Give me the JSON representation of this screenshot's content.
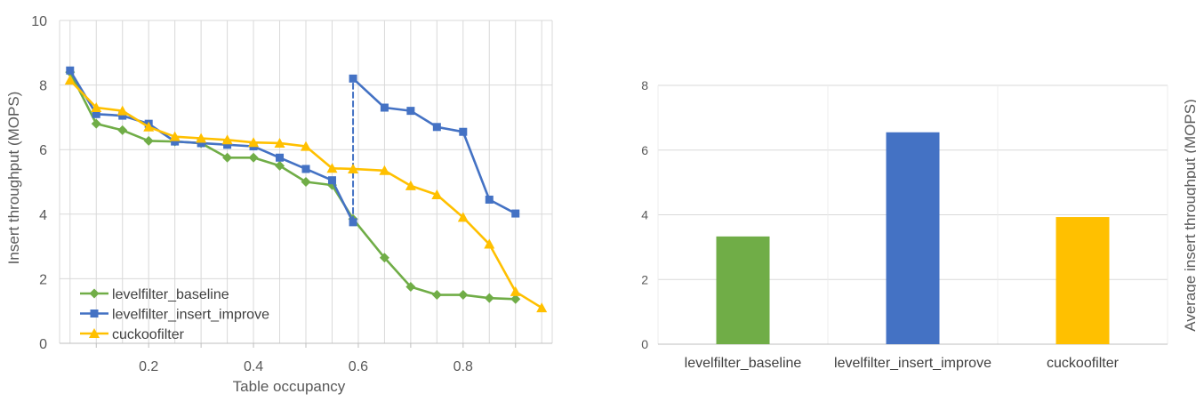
{
  "chart_data": [
    {
      "type": "line",
      "xlabel": "Table occupancy",
      "ylabel": "Insert throughput (MOPS)",
      "xlim": [
        0.03,
        0.97
      ],
      "ylim": [
        0,
        10
      ],
      "x_ticks": [
        "0.2",
        "0.4",
        "0.6",
        "0.8"
      ],
      "y_ticks": [
        "0",
        "2",
        "4",
        "6",
        "8",
        "10"
      ],
      "grid": true,
      "legend_position": "bottom-left",
      "series": [
        {
          "name": "levelfilter_baseline",
          "color": "#70ad47",
          "marker": "diamond",
          "x": [
            0.05,
            0.1,
            0.15,
            0.2,
            0.25,
            0.3,
            0.35,
            0.4,
            0.45,
            0.5,
            0.55,
            0.59,
            0.65,
            0.7,
            0.75,
            0.8,
            0.85,
            0.9
          ],
          "y": [
            8.4,
            6.8,
            6.6,
            6.27,
            6.25,
            6.2,
            5.75,
            5.75,
            5.5,
            5.0,
            4.9,
            3.85,
            2.65,
            1.75,
            1.5,
            1.5,
            1.4,
            1.37
          ]
        },
        {
          "name": "levelfilter_insert_improve",
          "color": "#4472c4",
          "marker": "square",
          "x": [
            0.05,
            0.1,
            0.15,
            0.2,
            0.25,
            0.3,
            0.35,
            0.4,
            0.45,
            0.5,
            0.55,
            0.59,
            0.59,
            0.65,
            0.7,
            0.75,
            0.8,
            0.85,
            0.9
          ],
          "y": [
            8.45,
            7.1,
            7.05,
            6.8,
            6.25,
            6.2,
            6.15,
            6.1,
            5.75,
            5.4,
            5.05,
            3.75,
            8.2,
            7.3,
            7.2,
            6.7,
            6.55,
            4.45,
            4.02
          ],
          "dashed_segment_index": 11
        },
        {
          "name": "cuckoofilter",
          "color": "#ffc000",
          "marker": "triangle",
          "x": [
            0.05,
            0.1,
            0.15,
            0.2,
            0.25,
            0.3,
            0.35,
            0.4,
            0.45,
            0.5,
            0.55,
            0.59,
            0.65,
            0.7,
            0.75,
            0.8,
            0.85,
            0.9,
            0.95
          ],
          "y": [
            8.15,
            7.3,
            7.2,
            6.7,
            6.4,
            6.35,
            6.3,
            6.22,
            6.2,
            6.1,
            5.42,
            5.4,
            5.35,
            4.88,
            4.6,
            3.9,
            3.07,
            1.6,
            1.1
          ]
        }
      ]
    },
    {
      "type": "bar",
      "ylabel": "Average insert throughput (MOPS)",
      "ylim": [
        0,
        8
      ],
      "y_ticks": [
        "0",
        "2",
        "4",
        "6",
        "8"
      ],
      "grid": true,
      "categories": [
        "levelfilter_baseline",
        "levelfilter_insert_improve",
        "cuckoofilter"
      ],
      "values": [
        3.33,
        6.55,
        3.93
      ],
      "colors": [
        "#70ad47",
        "#4472c4",
        "#ffc000"
      ]
    }
  ]
}
